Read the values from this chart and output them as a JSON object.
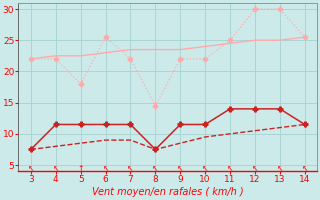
{
  "x": [
    3,
    4,
    5,
    6,
    7,
    8,
    9,
    10,
    11,
    12,
    13,
    14
  ],
  "rafales_light": [
    22,
    22,
    18,
    25.5,
    22,
    14.5,
    22,
    22,
    25,
    30,
    30,
    25.5
  ],
  "moyen_light": [
    22,
    22.5,
    22.5,
    23,
    23.5,
    23.5,
    23.5,
    24,
    24.5,
    25,
    25,
    25.5
  ],
  "gusts_dark": [
    7.5,
    11.5,
    11.5,
    11.5,
    11.5,
    7.5,
    11.5,
    11.5,
    14,
    14,
    14,
    11.5
  ],
  "mean_dark": [
    7.5,
    8.0,
    8.5,
    9.0,
    9.0,
    7.5,
    8.5,
    9.5,
    10.0,
    10.5,
    11.0,
    11.5
  ],
  "bg_color": "#cceaea",
  "grid_color": "#aad4d4",
  "pink_light": "#ffaaaa",
  "red_dark": "#cc2222",
  "xlabel": "Vent moyen/en rafales ( km/h )",
  "xlim": [
    2.5,
    14.5
  ],
  "ylim": [
    4,
    31
  ],
  "yticks": [
    5,
    10,
    15,
    20,
    25,
    30
  ],
  "xticks": [
    3,
    4,
    5,
    6,
    7,
    8,
    9,
    10,
    11,
    12,
    13,
    14
  ],
  "arrow_chars": [
    "↖",
    "↖",
    "↑",
    "↖",
    "↖",
    "↖",
    "↖",
    "↖",
    "↖",
    "↖",
    "↖",
    "↖"
  ]
}
